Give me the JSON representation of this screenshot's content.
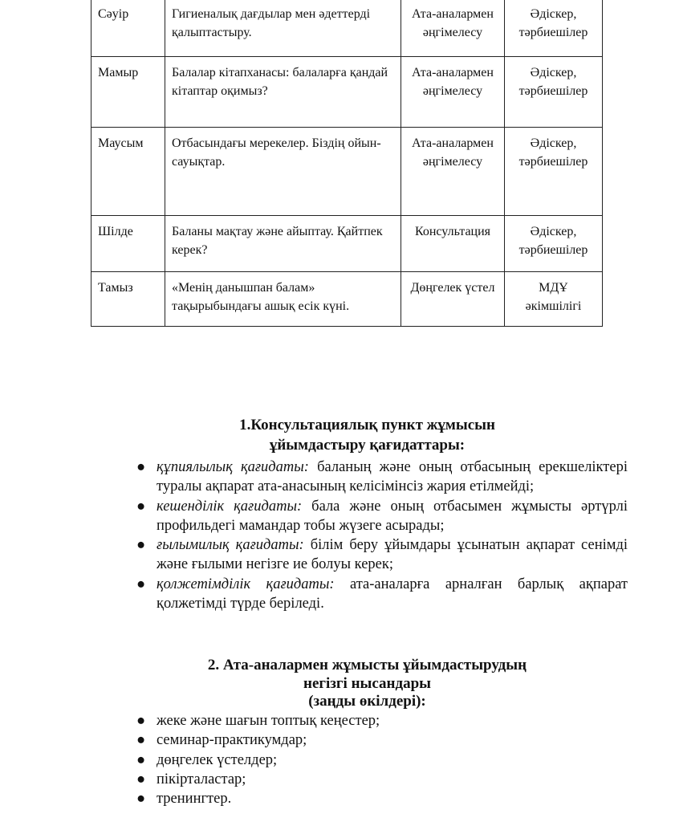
{
  "table": {
    "rows": [
      {
        "month": "Сәуір",
        "topic": "Гигиеналық дағдылар мен әдеттерді қалыптастыру.",
        "form": "Ата-аналармен әңгімелесу",
        "responsible": "Әдіскер, тәрбиешілер"
      },
      {
        "month": "Мамыр",
        "topic": "Балалар кітапханасы: балаларға қандай кітаптар оқимыз?",
        "form": "Ата-аналармен әңгімелесу",
        "responsible": "Әдіскер, тәрбиешілер"
      },
      {
        "month": "Маусым",
        "topic": "Отбасындағы мерекелер. Біздің ойын-сауықтар.",
        "form": "Ата-аналармен әңгімелесу",
        "responsible": "Әдіскер, тәрбиешілер"
      },
      {
        "month": "Шілде",
        "topic": "Баланы мақтау және айыптау. Қайтпек керек?",
        "form": "Консультация",
        "responsible": "Әдіскер, тәрбиешілер"
      },
      {
        "month": "Тамыз",
        "topic": "«Менің данышпан балам» тақырыбындағы ашық есік күні.",
        "form": "Дөңгелек үстел",
        "responsible": "МДҰ әкімшілігі"
      }
    ]
  },
  "section1": {
    "title_line1": "1.Консультациялық пункт жұмысын",
    "title_line2": "ұйымдастыру қағидаттары:",
    "items": [
      {
        "term": "құпиялылық қағидаты:",
        "text": " баланың және оның отбасының ерекшеліктері туралы ақпарат ата-анасының келісімінсіз жария етілмейді;"
      },
      {
        "term": "кешенділік қағидаты:",
        "text": " бала және оның отбасымен жұмысты әртүрлі профильдегі мамандар тобы жүзеге асырады;"
      },
      {
        "term": "ғылымилық қағидаты:",
        "text": " білім беру ұйымдары ұсынатын ақпарат сенімді және ғылыми негізге ие болуы керек;"
      },
      {
        "term": "қолжетімділік қағидаты:",
        "text": " ата-аналарға арналған барлық ақпарат қолжетімді түрде беріледі."
      }
    ]
  },
  "section2": {
    "title_line1": "2. Ата-аналармен жұмысты ұйымдастырудың",
    "title_line2": "негізгі нысандары",
    "title_line3": "(заңды өкілдері):",
    "items": [
      "жеке және шағын топтық кеңестер;",
      "семинар-практикумдар;",
      "дөңгелек үстелдер;",
      "пікірталастар;",
      "тренингтер."
    ]
  }
}
